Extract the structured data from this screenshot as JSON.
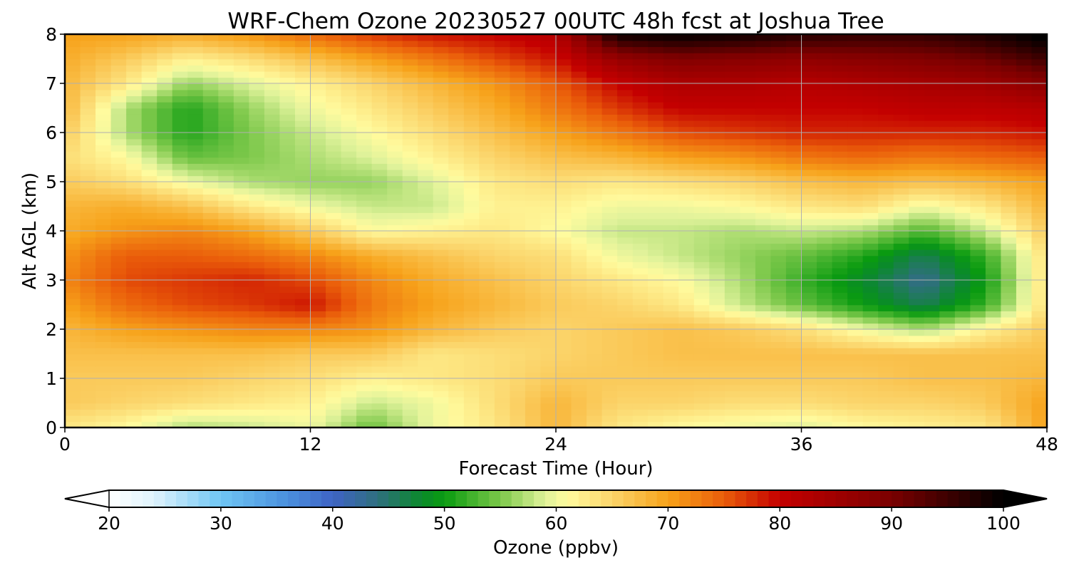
{
  "chart_data": {
    "type": "heatmap",
    "title": "WRF-Chem Ozone  20230527 00UTC 48h fcst at Joshua Tree",
    "xlabel": "Forecast Time (Hour)",
    "ylabel": "Alt AGL (km)",
    "xlim": [
      0,
      48
    ],
    "ylim": [
      0,
      8
    ],
    "xticks": [
      0,
      12,
      24,
      36,
      48
    ],
    "yticks": [
      0,
      1,
      2,
      3,
      4,
      5,
      6,
      7,
      8
    ],
    "grid": true,
    "x": [
      0,
      3,
      6,
      9,
      12,
      15,
      18,
      21,
      24,
      27,
      30,
      33,
      36,
      39,
      42,
      45,
      48
    ],
    "y": [
      0,
      0.5,
      1,
      1.5,
      2,
      2.5,
      3,
      3.5,
      4,
      4.5,
      5,
      5.5,
      6,
      6.5,
      7,
      7.5,
      8
    ],
    "z": [
      [
        63,
        61,
        57,
        58,
        60,
        54,
        60,
        63,
        68,
        63,
        61,
        60,
        59,
        61,
        62,
        63,
        70
      ],
      [
        66,
        65,
        64,
        63,
        62,
        58,
        60,
        64,
        68,
        65,
        65,
        64,
        64,
        65,
        65,
        66,
        70
      ],
      [
        66,
        66,
        66,
        65,
        64,
        62,
        63,
        64,
        66,
        66,
        66,
        66,
        66,
        66,
        67,
        67,
        68
      ],
      [
        67,
        67,
        67,
        67,
        66,
        66,
        63,
        64,
        65,
        66,
        67,
        67,
        67,
        67,
        67,
        67,
        67
      ],
      [
        68,
        70,
        71,
        72,
        72,
        71,
        68,
        66,
        65,
        66,
        67,
        66,
        64,
        60,
        57,
        62,
        66
      ],
      [
        70,
        74,
        76,
        77,
        79,
        73,
        70,
        68,
        66,
        65,
        63,
        58,
        54,
        50,
        46,
        52,
        64
      ],
      [
        72,
        76,
        77,
        78,
        76,
        72,
        69,
        67,
        65,
        63,
        61,
        57,
        52,
        48,
        43,
        50,
        64
      ],
      [
        71,
        75,
        75,
        74,
        72,
        69,
        67,
        65,
        64,
        60,
        58,
        56,
        54,
        51,
        46,
        52,
        64
      ],
      [
        69,
        71,
        72,
        70,
        66,
        61,
        62,
        63,
        61,
        58,
        58,
        57,
        58,
        57,
        53,
        58,
        66
      ],
      [
        68,
        69,
        67,
        63,
        60,
        58,
        58,
        62,
        62,
        60,
        60,
        61,
        63,
        64,
        60,
        63,
        68
      ],
      [
        66,
        64,
        60,
        57,
        56,
        56,
        59,
        63,
        64,
        63,
        64,
        65,
        67,
        68,
        67,
        68,
        70
      ],
      [
        64,
        61,
        54,
        55,
        57,
        59,
        62,
        65,
        67,
        68,
        70,
        71,
        73,
        74,
        73,
        74,
        75
      ],
      [
        66,
        57,
        51,
        55,
        58,
        61,
        64,
        67,
        70,
        73,
        76,
        77,
        78,
        78,
        78,
        78,
        79
      ],
      [
        68,
        57,
        51,
        56,
        60,
        63,
        66,
        69,
        73,
        77,
        80,
        80,
        80,
        80,
        81,
        81,
        82
      ],
      [
        68,
        63,
        56,
        59,
        62,
        65,
        68,
        71,
        75,
        80,
        83,
        83,
        82,
        83,
        84,
        85,
        88
      ],
      [
        69,
        66,
        62,
        64,
        67,
        70,
        73,
        76,
        79,
        86,
        89,
        88,
        87,
        88,
        89,
        91,
        95
      ],
      [
        70,
        70,
        69,
        71,
        74,
        77,
        79,
        80,
        82,
        99,
        100,
        99,
        97,
        96,
        96,
        98,
        101
      ]
    ],
    "colorbar": {
      "label": "Ozone  (ppbv)",
      "min": 20,
      "max": 100,
      "ticks": [
        20,
        30,
        40,
        50,
        60,
        70,
        80,
        90,
        100
      ],
      "extend": "both",
      "palette": [
        {
          "v": 20,
          "c": "#ffffff"
        },
        {
          "v": 24,
          "c": "#dff3fd"
        },
        {
          "v": 30,
          "c": "#6fc6f4"
        },
        {
          "v": 36,
          "c": "#4a8fdd"
        },
        {
          "v": 40,
          "c": "#3f63c5"
        },
        {
          "v": 44,
          "c": "#2f6f7e"
        },
        {
          "v": 48,
          "c": "#0a8a2a"
        },
        {
          "v": 50,
          "c": "#0a9b10"
        },
        {
          "v": 55,
          "c": "#7cc84a"
        },
        {
          "v": 59,
          "c": "#dff29a"
        },
        {
          "v": 61,
          "c": "#fffb9e"
        },
        {
          "v": 65,
          "c": "#fbd46a"
        },
        {
          "v": 70,
          "c": "#f7a21a"
        },
        {
          "v": 75,
          "c": "#ea5d0a"
        },
        {
          "v": 80,
          "c": "#c40000"
        },
        {
          "v": 90,
          "c": "#7a0000"
        },
        {
          "v": 100,
          "c": "#000000"
        }
      ]
    }
  }
}
